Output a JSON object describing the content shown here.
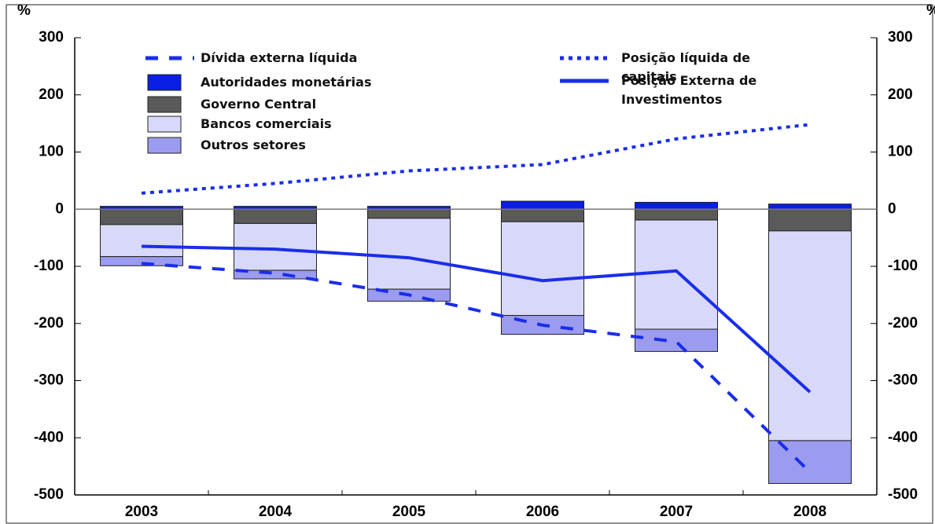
{
  "chart_data": {
    "type": "bar-line",
    "y_label": "%",
    "y2_label": "%",
    "categories": [
      "2003",
      "2004",
      "2005",
      "2006",
      "2007",
      "2008"
    ],
    "series": [
      {
        "name": "Autoridades monetárias",
        "type": "bar",
        "color": "#0a1ee6",
        "values": [
          5,
          5,
          5,
          14,
          12,
          9
        ]
      },
      {
        "name": "Governo Central",
        "type": "bar",
        "color": "#5a5a5a",
        "values": [
          -27,
          -25,
          -16,
          -22,
          -19,
          -38
        ]
      },
      {
        "name": "Bancos comerciais",
        "type": "bar",
        "color": "#d8d8f8",
        "values": [
          -56,
          -82,
          -124,
          -164,
          -191,
          -367
        ]
      },
      {
        "name": "Outros setores",
        "type": "bar",
        "color": "#9b9bf0",
        "values": [
          -16,
          -15,
          -21,
          -33,
          -39,
          -75
        ]
      },
      {
        "name": "Dívida externa líquida",
        "type": "line",
        "style": "dashed",
        "color": "#1a2ee8",
        "values": [
          -95,
          -112,
          -150,
          -203,
          -232,
          -460
        ]
      },
      {
        "name": "Posição líquida de capitais",
        "type": "line",
        "style": "dotted",
        "color": "#1a2ee8",
        "values": [
          28,
          45,
          67,
          78,
          123,
          148
        ]
      },
      {
        "name": "Posição Externa de Investimentos",
        "type": "line",
        "style": "solid",
        "color": "#1a2ee8",
        "values": [
          -65,
          -70,
          -85,
          -125,
          -108,
          -320
        ]
      }
    ],
    "ylim": [
      -500,
      300
    ],
    "yticks": [
      -500,
      -400,
      -300,
      -200,
      -100,
      0,
      100,
      200,
      300
    ],
    "y2lim": [
      -500,
      300
    ],
    "y2ticks": [
      -500,
      -400,
      -300,
      -200,
      -100,
      0,
      100,
      200,
      300
    ]
  }
}
